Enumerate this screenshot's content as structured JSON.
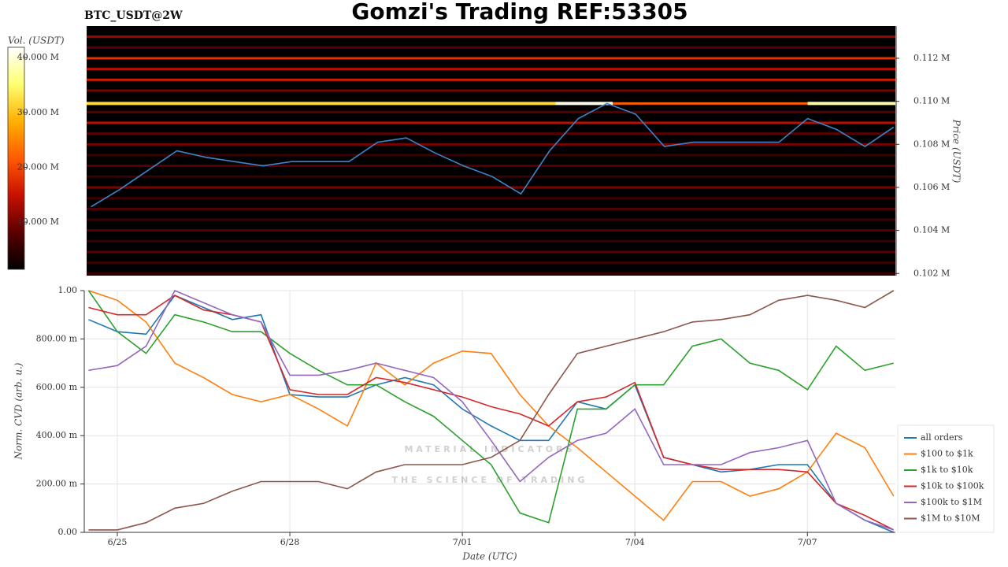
{
  "chart_data": [
    {
      "type": "heatmap",
      "title": "Gomzi's Trading REF:53305",
      "symbol": "BTC_USDT@2W",
      "ylabel": "Price (USDT)",
      "colorbar_label": "Vol. (USDT)",
      "colorscale": [
        "#000000",
        "#5a0000",
        "#c81000",
        "#ff5a00",
        "#ffb000",
        "#ffff70",
        "#ffffff"
      ],
      "clim": [
        1.4,
        41.9
      ],
      "cticks": [
        {
          "value": 10,
          "label": "10.000 M"
        },
        {
          "value": 20,
          "label": "20.000 M"
        },
        {
          "value": 30,
          "label": "30.000 M"
        },
        {
          "value": 40,
          "label": "40.000 M"
        }
      ],
      "xlim": [
        -0.575,
        13.53
      ],
      "ylim": [
        0.1019,
        0.1135
      ],
      "yticks": [
        {
          "value": 0.102,
          "label": "0.102 M"
        },
        {
          "value": 0.104,
          "label": "0.104 M"
        },
        {
          "value": 0.106,
          "label": "0.106 M"
        },
        {
          "value": 0.108,
          "label": "0.108 M"
        },
        {
          "value": 0.11,
          "label": "0.110 M"
        },
        {
          "value": 0.112,
          "label": "0.112 M"
        }
      ],
      "bands": [
        {
          "price": 0.113,
          "volume": 12
        },
        {
          "price": 0.1125,
          "volume": 8
        },
        {
          "price": 0.112,
          "volume": 18
        },
        {
          "price": 0.1115,
          "volume": 14
        },
        {
          "price": 0.111,
          "volume": 16
        },
        {
          "price": 0.1105,
          "volume": 10
        },
        {
          "price": 0.1099,
          "volume": 22
        },
        {
          "price": 0.1095,
          "volume": 8
        },
        {
          "price": 0.109,
          "volume": 14
        },
        {
          "price": 0.1085,
          "volume": 8
        },
        {
          "price": 0.108,
          "volume": 10
        },
        {
          "price": 0.1075,
          "volume": 6
        },
        {
          "price": 0.107,
          "volume": 8
        },
        {
          "price": 0.1065,
          "volume": 6
        },
        {
          "price": 0.106,
          "volume": 10
        },
        {
          "price": 0.1055,
          "volume": 6
        },
        {
          "price": 0.105,
          "volume": 8
        },
        {
          "price": 0.1045,
          "volume": 6
        },
        {
          "price": 0.104,
          "volume": 8
        },
        {
          "price": 0.1035,
          "volume": 6
        },
        {
          "price": 0.103,
          "volume": 8
        },
        {
          "price": 0.1025,
          "volume": 6
        },
        {
          "price": 0.102,
          "volume": 6
        }
      ],
      "highlights": [
        {
          "price": 0.1099,
          "x": [
            -0.575,
            7.6
          ],
          "volume": 32
        },
        {
          "price": 0.1099,
          "x": [
            7.6,
            8.6
          ],
          "volume": 41
        },
        {
          "price": 0.1099,
          "x": [
            12,
            13.53
          ],
          "volume": 38
        }
      ],
      "x": [
        -0.5,
        0,
        0.5,
        1,
        1.5,
        2,
        2.5,
        3,
        3.5,
        4,
        4.5,
        5,
        5.5,
        6,
        6.5,
        7,
        7.5,
        8,
        8.5,
        9,
        9.5,
        10,
        10.5,
        11,
        11.5,
        12,
        12.5,
        13,
        13.5
      ],
      "series": [
        {
          "color": "#3a86c8",
          "values": [
            0.1051,
            0.1059,
            0.1068,
            0.1077,
            0.1074,
            0.1072,
            0.107,
            0.1072,
            0.1072,
            0.1072,
            0.1081,
            0.1083,
            0.1076,
            0.107,
            0.1065,
            0.1057,
            0.1077,
            0.1092,
            0.1099,
            0.1094,
            0.1079,
            0.1081,
            0.1081,
            0.1081,
            0.1081,
            0.1092,
            0.1087,
            0.1079,
            0.1088
          ]
        }
      ]
    },
    {
      "type": "line",
      "ylabel": "Norm. CVD (arb. u.)",
      "xlabel": "Date (UTC)",
      "watermark": [
        "MATERIAL INDICATORS",
        "THE SCIENCE OF TRADING"
      ],
      "xlim": [
        -0.575,
        13.53
      ],
      "xticks": [
        {
          "value": 0,
          "label": "6/25"
        },
        {
          "value": 3,
          "label": "6/28"
        },
        {
          "value": 6,
          "label": "7/01"
        },
        {
          "value": 9,
          "label": "7/04"
        },
        {
          "value": 12,
          "label": "7/07"
        }
      ],
      "ylim": [
        0,
        1
      ],
      "yticks": [
        {
          "value": 0,
          "label": "0.00"
        },
        {
          "value": 0.2,
          "label": "200.00 m"
        },
        {
          "value": 0.4,
          "label": "400.00 m"
        },
        {
          "value": 0.6,
          "label": "600.00 m"
        },
        {
          "value": 0.8,
          "label": "800.00 m"
        },
        {
          "value": 1,
          "label": "1.00"
        }
      ],
      "grid": true,
      "x": [
        -0.5,
        0,
        0.5,
        1,
        1.5,
        2,
        2.5,
        3,
        3.5,
        4,
        4.5,
        5,
        5.5,
        6,
        6.5,
        7,
        7.5,
        8,
        8.5,
        9,
        9.5,
        10,
        10.5,
        11,
        11.5,
        12,
        12.5,
        13,
        13.5
      ],
      "series": [
        {
          "name": "all orders",
          "color": "#1f77b4",
          "values": [
            0.88,
            0.83,
            0.82,
            0.98,
            0.93,
            0.88,
            0.9,
            0.57,
            0.56,
            0.56,
            0.61,
            0.64,
            0.61,
            0.51,
            0.44,
            0.38,
            0.38,
            0.54,
            0.51,
            0.61,
            0.31,
            0.28,
            0.25,
            0.26,
            0.28,
            0.28,
            0.12,
            0.05,
            0
          ]
        },
        {
          "name": "$100 to $1k",
          "color": "#ff7f0e",
          "values": [
            1,
            0.96,
            0.87,
            0.7,
            0.64,
            0.57,
            0.54,
            0.57,
            0.51,
            0.44,
            0.7,
            0.61,
            0.7,
            0.75,
            0.74,
            0.57,
            0.44,
            0.35,
            0.25,
            0.15,
            0.05,
            0.21,
            0.21,
            0.15,
            0.18,
            0.25,
            0.41,
            0.35,
            0.15
          ]
        },
        {
          "name": "$1k to $10k",
          "color": "#2ca02c",
          "values": [
            1,
            0.83,
            0.74,
            0.9,
            0.87,
            0.83,
            0.83,
            0.74,
            0.67,
            0.61,
            0.61,
            0.54,
            0.48,
            0.38,
            0.28,
            0.08,
            0.04,
            0.51,
            0.51,
            0.61,
            0.61,
            0.77,
            0.8,
            0.7,
            0.67,
            0.59,
            0.77,
            0.67,
            0.7
          ]
        },
        {
          "name": "$10k to $100k",
          "color": "#d62728",
          "values": [
            0.93,
            0.9,
            0.9,
            0.98,
            0.92,
            0.9,
            0.87,
            0.59,
            0.57,
            0.57,
            0.64,
            0.62,
            0.59,
            0.56,
            0.52,
            0.49,
            0.44,
            0.54,
            0.56,
            0.62,
            0.31,
            0.28,
            0.26,
            0.26,
            0.26,
            0.25,
            0.12,
            0.07,
            0.01
          ]
        },
        {
          "name": "$100k to $1M",
          "color": "#9467bd",
          "values": [
            0.67,
            0.69,
            0.77,
            1,
            0.95,
            0.9,
            0.87,
            0.65,
            0.65,
            0.67,
            0.7,
            0.67,
            0.64,
            0.54,
            0.38,
            0.21,
            0.31,
            0.38,
            0.41,
            0.51,
            0.28,
            0.28,
            0.28,
            0.33,
            0.35,
            0.38,
            0.12,
            0.05,
            0.01
          ]
        },
        {
          "name": "$1M to $10M",
          "color": "#8c564b",
          "values": [
            0.01,
            0.01,
            0.04,
            0.1,
            0.12,
            0.17,
            0.21,
            0.21,
            0.21,
            0.18,
            0.25,
            0.28,
            0.28,
            0.28,
            0.31,
            0.38,
            0.57,
            0.74,
            0.77,
            0.8,
            0.83,
            0.87,
            0.88,
            0.9,
            0.96,
            0.98,
            0.96,
            0.93,
            1
          ]
        }
      ]
    }
  ]
}
